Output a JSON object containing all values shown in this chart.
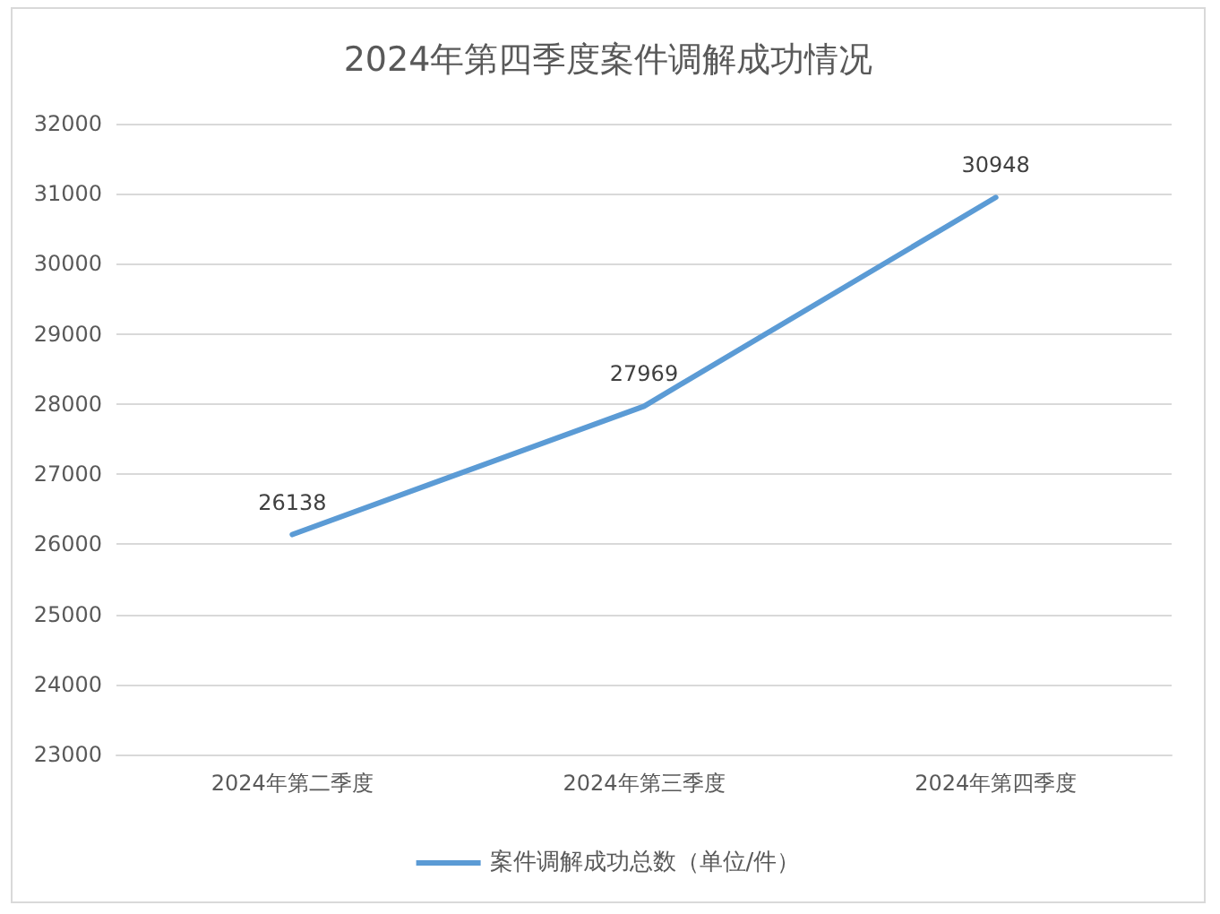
{
  "chart_data": {
    "type": "line",
    "title": "2024年第四季度案件调解成功情况",
    "categories": [
      "2024年第二季度",
      "2024年第三季度",
      "2024年第四季度"
    ],
    "series": [
      {
        "name": "案件调解成功总数（单位/件）",
        "color": "#5b9bd5",
        "values": [
          26138,
          27969,
          30948
        ]
      }
    ],
    "ylim": [
      23000,
      32000
    ],
    "yticks": [
      23000,
      24000,
      25000,
      26000,
      27000,
      28000,
      29000,
      30000,
      31000,
      32000
    ],
    "grid": "y",
    "legend": "bottom",
    "data_labels": true,
    "marker": "none",
    "line_style": "solid"
  }
}
